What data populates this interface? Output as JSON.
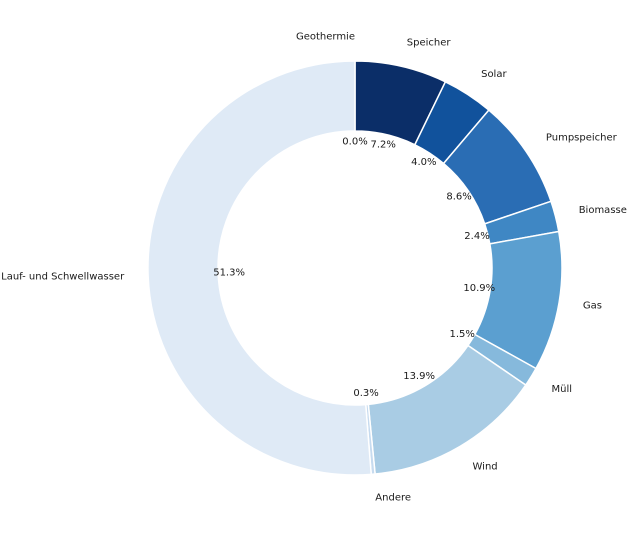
{
  "chart_data": {
    "type": "pie",
    "subtype": "donut",
    "title": "",
    "legend": "none",
    "grid": false,
    "start_angle": "top",
    "direction": "clockwise",
    "hole_ratio": 0.66,
    "background": "#ffffff",
    "separator_color": "#ffffff",
    "text_color": "#1a1a1a",
    "categories": [
      "Speicher",
      "Solar",
      "Pumpspeicher",
      "Biomasse",
      "Gas",
      "Müll",
      "Wind",
      "Andere",
      "Lauf- und Schwellwasser",
      "Geothermie"
    ],
    "values": [
      7.2,
      4.0,
      8.6,
      2.4,
      10.9,
      1.5,
      13.9,
      0.3,
      51.3,
      0.0
    ],
    "slices": [
      {
        "label": "Speicher",
        "value": 7.2,
        "display": "7.2%",
        "color": "#0b2e68"
      },
      {
        "label": "Solar",
        "value": 4.0,
        "display": "4.0%",
        "color": "#11529c"
      },
      {
        "label": "Pumpspeicher",
        "value": 8.6,
        "display": "8.6%",
        "color": "#2a6db4"
      },
      {
        "label": "Biomasse",
        "value": 2.4,
        "display": "2.4%",
        "color": "#3f87c4"
      },
      {
        "label": "Gas",
        "value": 10.9,
        "display": "10.9%",
        "color": "#5b9fd0"
      },
      {
        "label": "Müll",
        "value": 1.5,
        "display": "1.5%",
        "color": "#86b9dc"
      },
      {
        "label": "Wind",
        "value": 13.9,
        "display": "13.9%",
        "color": "#a9cce4"
      },
      {
        "label": "Andere",
        "value": 0.3,
        "display": "0.3%",
        "color": "#c7dbef"
      },
      {
        "label": "Lauf- und Schwellwasser",
        "value": 51.3,
        "display": "51.3%",
        "color": "#dfeaf6"
      },
      {
        "label": "Geothermie",
        "value": 0.0,
        "display": "0.0%",
        "color": "#f7fbff"
      }
    ]
  }
}
